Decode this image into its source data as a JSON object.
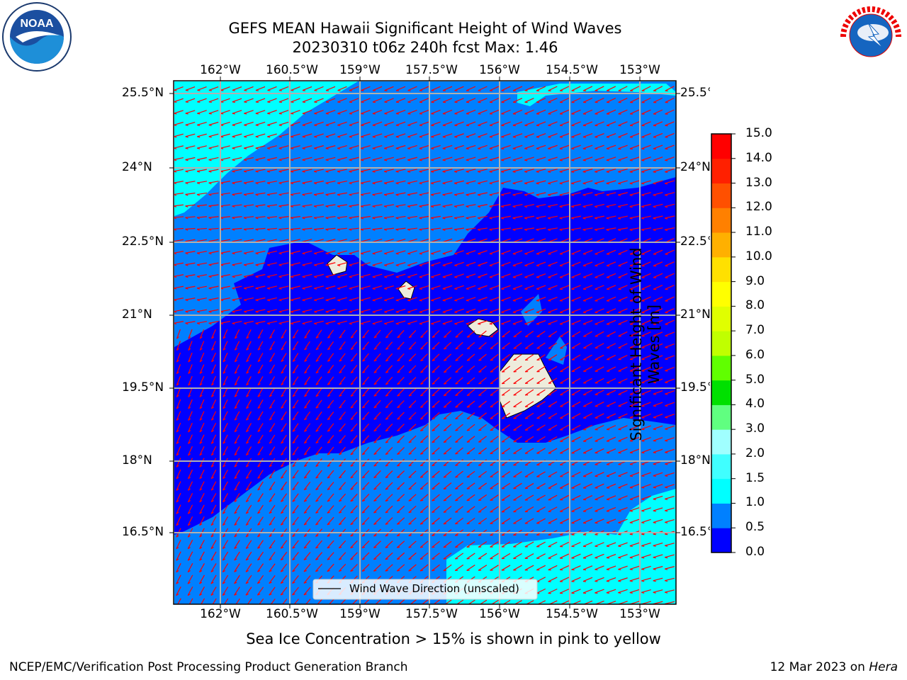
{
  "header": {
    "title_line1": "GEFS MEAN Hawaii Significant Height of Wind Waves",
    "title_line2": "20230310 t06z 240h fcst   Max: 1.46"
  },
  "logos": {
    "left": "NOAA",
    "left_ring_text": "NATIONAL OCEANIC AND ATMOSPHERIC ADMINISTRATION · U.S. DEPARTMENT OF COMMERCE",
    "right_ring_text": "NATIONAL WEATHER SERVICE"
  },
  "map": {
    "lon_labels": [
      "162°W",
      "160.5°W",
      "159°W",
      "157.5°W",
      "156°W",
      "154.5°W",
      "153°W"
    ],
    "lat_labels": [
      "25.5°N",
      "24°N",
      "22.5°N",
      "21°N",
      "19.5°N",
      "18°N",
      "16.5°N"
    ],
    "legend_label": "Wind Wave Direction (unscaled)",
    "vector_color": "#ff0000",
    "land_color": "#eeecdc",
    "fill_colors": {
      "0.0-0.5": "#0000ff",
      "0.5-1.0": "#0080ff",
      "1.0-1.5": "#00ffff"
    }
  },
  "colorbar": {
    "label_line1": "Significant Height of Wind",
    "label_line2": "Waves [m]",
    "ticks": [
      "0.0",
      "0.5",
      "1.0",
      "1.5",
      "2.0",
      "3.0",
      "4.0",
      "5.0",
      "6.0",
      "7.0",
      "8.0",
      "9.0",
      "10.0",
      "11.0",
      "12.0",
      "13.0",
      "14.0",
      "15.0"
    ],
    "colors": [
      "#0000ff",
      "#0080ff",
      "#00ffff",
      "#40ffff",
      "#a0ffff",
      "#60ff80",
      "#00e000",
      "#60ff00",
      "#c0ff00",
      "#e0ff00",
      "#ffff00",
      "#ffe000",
      "#ffb000",
      "#ff8000",
      "#ff5000",
      "#ff2000",
      "#ff0000"
    ]
  },
  "caption": "Sea Ice Concentration > 15% is shown in pink to yellow",
  "footer": {
    "left": "NCEP/EMC/Verification Post Processing Product Generation Branch",
    "right_date": "12 Mar 2023 on ",
    "right_host": "Hera"
  }
}
